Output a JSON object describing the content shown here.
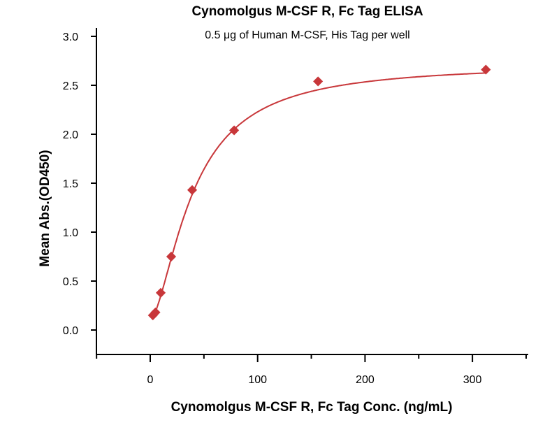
{
  "chart_data": {
    "type": "scatter",
    "title": "Cynomolgus M-CSF R, Fc Tag ELISA",
    "subtitle": "0.5 μg of Human M-CSF, His Tag per well",
    "xlabel": "Cynomolgus M-CSF R, Fc Tag Conc. (ng/mL)",
    "ylabel": "Mean Abs.(OD450)",
    "xlim": [
      -50,
      350
    ],
    "ylim": [
      -0.25,
      3.1
    ],
    "xticks": [
      0,
      100,
      200,
      300
    ],
    "xtick_labels": [
      "0",
      "100",
      "200",
      "300"
    ],
    "yticks": [
      0,
      0.5,
      1,
      1.5,
      2,
      2.5,
      3
    ],
    "ytick_labels": [
      "0.0",
      "0.5",
      "1.0",
      "1.5",
      "2.0",
      "2.5",
      "3.0"
    ],
    "grid": false,
    "color": "#c8373a",
    "series": [
      {
        "name": "Cynomolgus M-CSF R, Fc Tag",
        "x": [
          2.44,
          4.88,
          9.77,
          19.53,
          39.06,
          78.13,
          156.25,
          312.5
        ],
        "y": [
          0.15,
          0.18,
          0.38,
          0.75,
          1.43,
          2.04,
          2.54,
          2.66
        ]
      }
    ],
    "fit": {
      "type": "4PL",
      "bottom": 0.1,
      "top": 2.72,
      "ec50": 40,
      "hill": 1.6
    }
  }
}
